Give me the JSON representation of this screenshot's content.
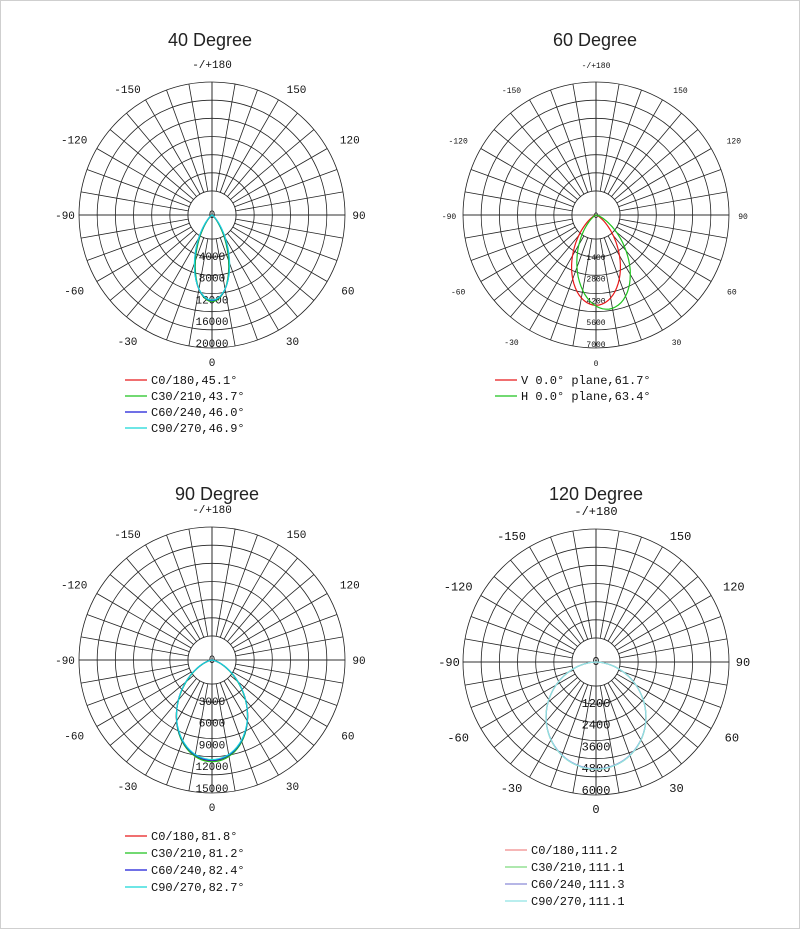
{
  "chart_data": [
    {
      "type": "polar",
      "title": "40 Degree",
      "angle_labels": {
        "top": "-/+180",
        "bottom": "0",
        "left": "-90",
        "right": "90",
        "lt150": "-150",
        "rt150": "150",
        "lt120": "-120",
        "rt120": "120",
        "lb60": "-60",
        "rb60": "60",
        "lb30": "-30",
        "rb30": "30"
      },
      "radial_ticks": [
        "0",
        "4000",
        "8000",
        "12000",
        "16000",
        "20000"
      ],
      "rmax": 20000,
      "series": [
        {
          "name": "C0/180,45.1°",
          "color": "#e8191a",
          "beam_deg": 45.1,
          "peak": 15800
        },
        {
          "name": "C30/210,43.7°",
          "color": "#1ec21e",
          "beam_deg": 43.7,
          "peak": 15900
        },
        {
          "name": "C60/240,46.0°",
          "color": "#1a1ad6",
          "beam_deg": 46.0,
          "peak": 15700
        },
        {
          "name": "C90/270,46.9°",
          "color": "#17d7d7",
          "beam_deg": 46.9,
          "peak": 15600
        }
      ]
    },
    {
      "type": "polar",
      "title": "60 Degree",
      "angle_labels": {
        "top": "-/+180",
        "bottom": "0",
        "left": "-90",
        "right": "90",
        "lt150": "-150",
        "rt150": "150",
        "lt120": "-120",
        "rt120": "120",
        "lb60": "-60",
        "rb60": "60",
        "lb30": "-30",
        "rb30": "30"
      },
      "radial_ticks": [
        "0",
        "1400",
        "2800",
        "4200",
        "5600",
        "7000"
      ],
      "rmax": 7000,
      "series": [
        {
          "name": "V 0.0° plane,61.7°",
          "color": "#e8191a",
          "beam_deg": 61.7,
          "peak": 5800
        },
        {
          "name": "H 0.0° plane,63.4°",
          "color": "#1ec21e",
          "beam_deg": 63.4,
          "peak": 6100
        }
      ]
    },
    {
      "type": "polar",
      "title": "90 Degree",
      "angle_labels": {
        "top": "-/+180",
        "bottom": "0",
        "left": "-90",
        "right": "90",
        "lt150": "-150",
        "rt150": "150",
        "lt120": "-120",
        "rt120": "120",
        "lb60": "-60",
        "rb60": "60",
        "lb30": "-30",
        "rb30": "30"
      },
      "radial_ticks": [
        "0",
        "3000",
        "6000",
        "9000",
        "12000",
        "15000"
      ],
      "rmax": 15000,
      "series": [
        {
          "name": "C0/180,81.8°",
          "color": "#e8191a",
          "beam_deg": 81.8,
          "peak": 13900
        },
        {
          "name": "C30/210,81.2°",
          "color": "#1ec21e",
          "beam_deg": 81.2,
          "peak": 14000
        },
        {
          "name": "C60/240,82.4°",
          "color": "#1a1ad6",
          "beam_deg": 82.4,
          "peak": 13800
        },
        {
          "name": "C90/270,82.7°",
          "color": "#17d7d7",
          "beam_deg": 82.7,
          "peak": 13700
        }
      ]
    },
    {
      "type": "polar",
      "title": "120 Degree",
      "angle_labels": {
        "top": "-/+180",
        "bottom": "0",
        "left": "-90",
        "right": "90",
        "lt150": "-150",
        "rt150": "150",
        "lt120": "-120",
        "rt120": "120",
        "lb60": "-60",
        "rb60": "60",
        "lb30": "-30",
        "rb30": "30"
      },
      "radial_ticks": [
        "0",
        "1200",
        "2400",
        "3600",
        "4800",
        "6000"
      ],
      "rmax": 6000,
      "series": [
        {
          "name": "C0/180,111.2",
          "color": "#f08a8a",
          "beam_deg": 111.2,
          "peak": 5900
        },
        {
          "name": "C30/210,111.1",
          "color": "#7ddb7d",
          "beam_deg": 111.1,
          "peak": 5900
        },
        {
          "name": "C60/240,111.3",
          "color": "#8a8ad6",
          "beam_deg": 111.3,
          "peak": 5880
        },
        {
          "name": "C90/270,111.1",
          "color": "#8fe3e3",
          "beam_deg": 111.1,
          "peak": 5900
        }
      ]
    }
  ]
}
